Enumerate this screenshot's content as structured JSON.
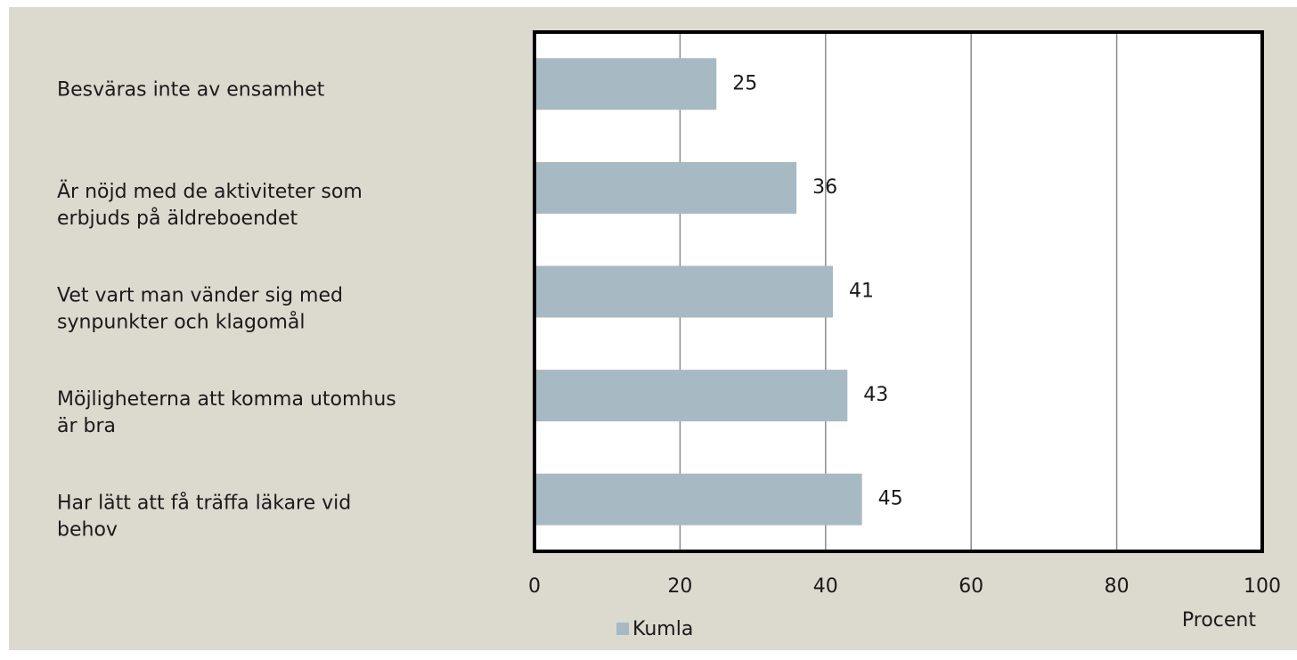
{
  "chart_data": {
    "type": "bar",
    "orientation": "horizontal",
    "categories": [
      "Besväras inte av ensamhet",
      "Är nöjd med de aktiviteter som\nerbjuds på äldreboendet",
      "Vet vart man vänder sig med\nsynpunkter och klagomål",
      "Möjligheterna att komma utomhus\när bra",
      "Har lätt att få träffa läkare vid\nbehov"
    ],
    "series": [
      {
        "name": "Kumla",
        "color": "#a7bac4",
        "values": [
          25,
          36,
          41,
          43,
          45
        ]
      }
    ],
    "xlabel": "Procent",
    "xlim": [
      0,
      100
    ],
    "xticks": [
      0,
      20,
      40,
      60,
      80,
      100
    ],
    "grid": true,
    "legend": "bottom"
  }
}
